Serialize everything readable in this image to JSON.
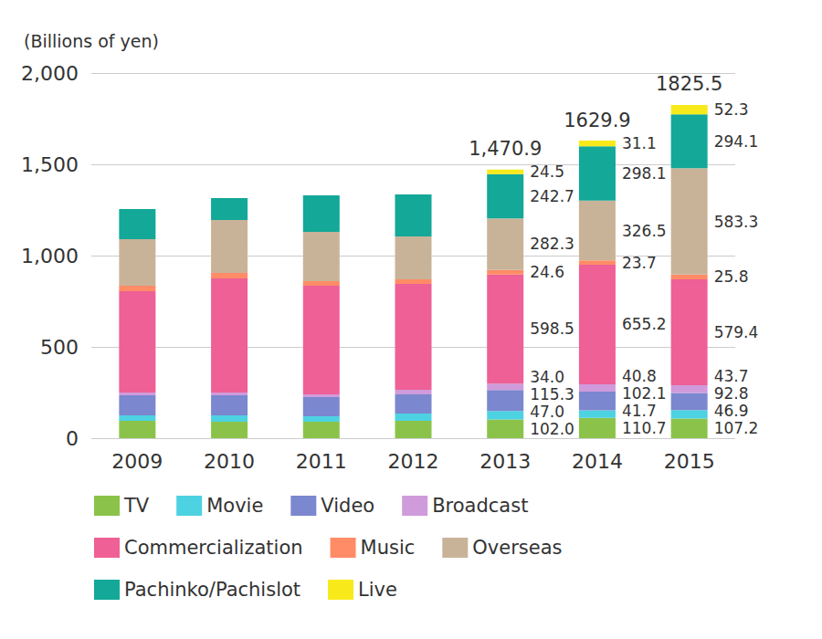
{
  "chart_data": {
    "type": "bar",
    "stacked": true,
    "y_label": "(Billions of yen)",
    "categories": [
      "2009",
      "2010",
      "2011",
      "2012",
      "2013",
      "2014",
      "2015"
    ],
    "ylim": [
      0,
      2000
    ],
    "yticks": [
      0,
      500,
      {
        "value": 1000,
        "label": "1,000"
      },
      {
        "value": 1500,
        "label": "1,500"
      },
      {
        "value": 2000,
        "label": "2,000"
      }
    ],
    "grid": true,
    "legend": "bottom",
    "data_labels": true,
    "series": [
      {
        "name": "TV",
        "color": "#8bc34a",
        "values": [
          95,
          90,
          90,
          95,
          102.0,
          110.7,
          107.2
        ],
        "value_labels": [
          null,
          null,
          null,
          null,
          "102.0",
          "110.7",
          "107.2"
        ]
      },
      {
        "name": "Movie",
        "color": "#4dd2e2",
        "values": [
          30,
          35,
          30,
          40,
          47.0,
          41.7,
          46.9
        ],
        "value_labels": [
          null,
          null,
          null,
          null,
          "47.0",
          "41.7",
          "46.9"
        ]
      },
      {
        "name": "Video",
        "color": "#7b87cf",
        "values": [
          110,
          110,
          105,
          105,
          115.3,
          102.1,
          92.8
        ],
        "value_labels": [
          null,
          null,
          null,
          null,
          "115.3",
          "102.1",
          "92.8"
        ]
      },
      {
        "name": "Broadcast",
        "color": "#cf9bdb",
        "values": [
          15,
          15,
          15,
          25,
          34.0,
          40.8,
          43.7
        ],
        "value_labels": [
          null,
          null,
          null,
          null,
          "34.0",
          "40.8",
          "43.7"
        ]
      },
      {
        "name": "Commercialization",
        "color": "#ee6096",
        "values": [
          555,
          625,
          595,
          580,
          598.5,
          655.2,
          579.4
        ],
        "value_labels": [
          null,
          null,
          null,
          null,
          "598.5",
          "655.2",
          "579.4"
        ]
      },
      {
        "name": "Music",
        "color": "#ff8c66",
        "values": [
          30,
          30,
          25,
          25,
          24.6,
          23.7,
          25.8
        ],
        "value_labels": [
          null,
          null,
          null,
          null,
          "24.6",
          "23.7",
          "25.8"
        ]
      },
      {
        "name": "Overseas",
        "color": "#c9b398",
        "values": [
          255,
          290,
          270,
          235,
          282.3,
          326.5,
          583.3
        ],
        "value_labels": [
          null,
          null,
          null,
          null,
          "282.3",
          "326.5",
          "583.3"
        ]
      },
      {
        "name": "Pachinko/Pachislot",
        "color": "#13a898",
        "values": [
          165,
          120,
          200,
          230,
          242.7,
          298.1,
          294.1
        ],
        "value_labels": [
          null,
          null,
          null,
          null,
          "242.7",
          "298.1",
          "294.1"
        ]
      },
      {
        "name": "Live",
        "color": "#f8ea1a",
        "values": [
          null,
          null,
          null,
          null,
          24.5,
          31.1,
          52.3
        ],
        "value_labels": [
          null,
          null,
          null,
          null,
          "24.5",
          "31.1",
          "52.3"
        ]
      }
    ],
    "totals": {
      "values": [
        null,
        null,
        null,
        null,
        1470.9,
        1629.9,
        1825.5
      ],
      "value_labels": [
        null,
        null,
        null,
        null,
        "1,470.9",
        "1629.9",
        "1825.5"
      ]
    }
  }
}
